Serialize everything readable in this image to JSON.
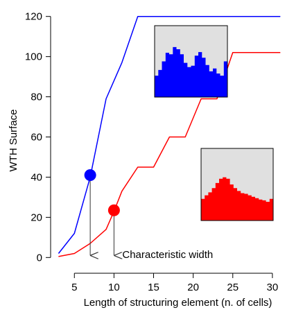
{
  "chart_data": {
    "type": "line",
    "xlabel": "Length of structuring element (n. of cells)",
    "ylabel": "WTH Surface",
    "xlim": [
      2,
      31.5
    ],
    "ylim": [
      -3,
      123
    ],
    "xticks": [
      5,
      10,
      15,
      20,
      25,
      30
    ],
    "yticks": [
      0,
      20,
      40,
      60,
      80,
      100,
      120
    ],
    "series": [
      {
        "color": "#0000ff",
        "x": [
          3,
          5,
          7,
          9,
          11,
          13,
          15,
          17,
          19,
          21,
          23,
          25,
          27,
          29,
          31
        ],
        "y": [
          2,
          12,
          40,
          79,
          97,
          120,
          120,
          120,
          120,
          120,
          120,
          120,
          120,
          120,
          120
        ]
      },
      {
        "color": "#ff0000",
        "x": [
          3,
          5,
          7,
          9,
          10,
          11,
          13,
          15,
          17,
          19,
          21,
          23,
          25,
          27,
          29,
          31
        ],
        "y": [
          0.5,
          2,
          7,
          14,
          23,
          33,
          45,
          45,
          60,
          60,
          79,
          79,
          102,
          102,
          102,
          102
        ]
      }
    ],
    "markers": [
      {
        "x": 7,
        "y": 41,
        "color": "#0000ff"
      },
      {
        "x": 10,
        "y": 23.5,
        "color": "#ff0000"
      }
    ],
    "arrows": [
      {
        "x": 7,
        "from_y": 41,
        "to_y": 1
      },
      {
        "x": 10,
        "from_y": 23.5,
        "to_y": 1
      }
    ],
    "annotation": "Characteristic width",
    "insets": [
      {
        "color": "#0000ff",
        "background": "#e0e0e0",
        "profile": [
          0.3,
          0.38,
          0.5,
          0.62,
          0.6,
          0.7,
          0.67,
          0.6,
          0.48,
          0.42,
          0.44,
          0.58,
          0.63,
          0.55,
          0.45,
          0.36,
          0.4,
          0.33,
          0.3,
          0.5
        ]
      },
      {
        "color": "#ff0000",
        "background": "#e0e0e0",
        "profile": [
          0.3,
          0.35,
          0.39,
          0.45,
          0.52,
          0.58,
          0.6,
          0.58,
          0.5,
          0.45,
          0.41,
          0.38,
          0.37,
          0.35,
          0.33,
          0.31,
          0.29,
          0.28,
          0.26,
          0.3
        ]
      }
    ]
  }
}
